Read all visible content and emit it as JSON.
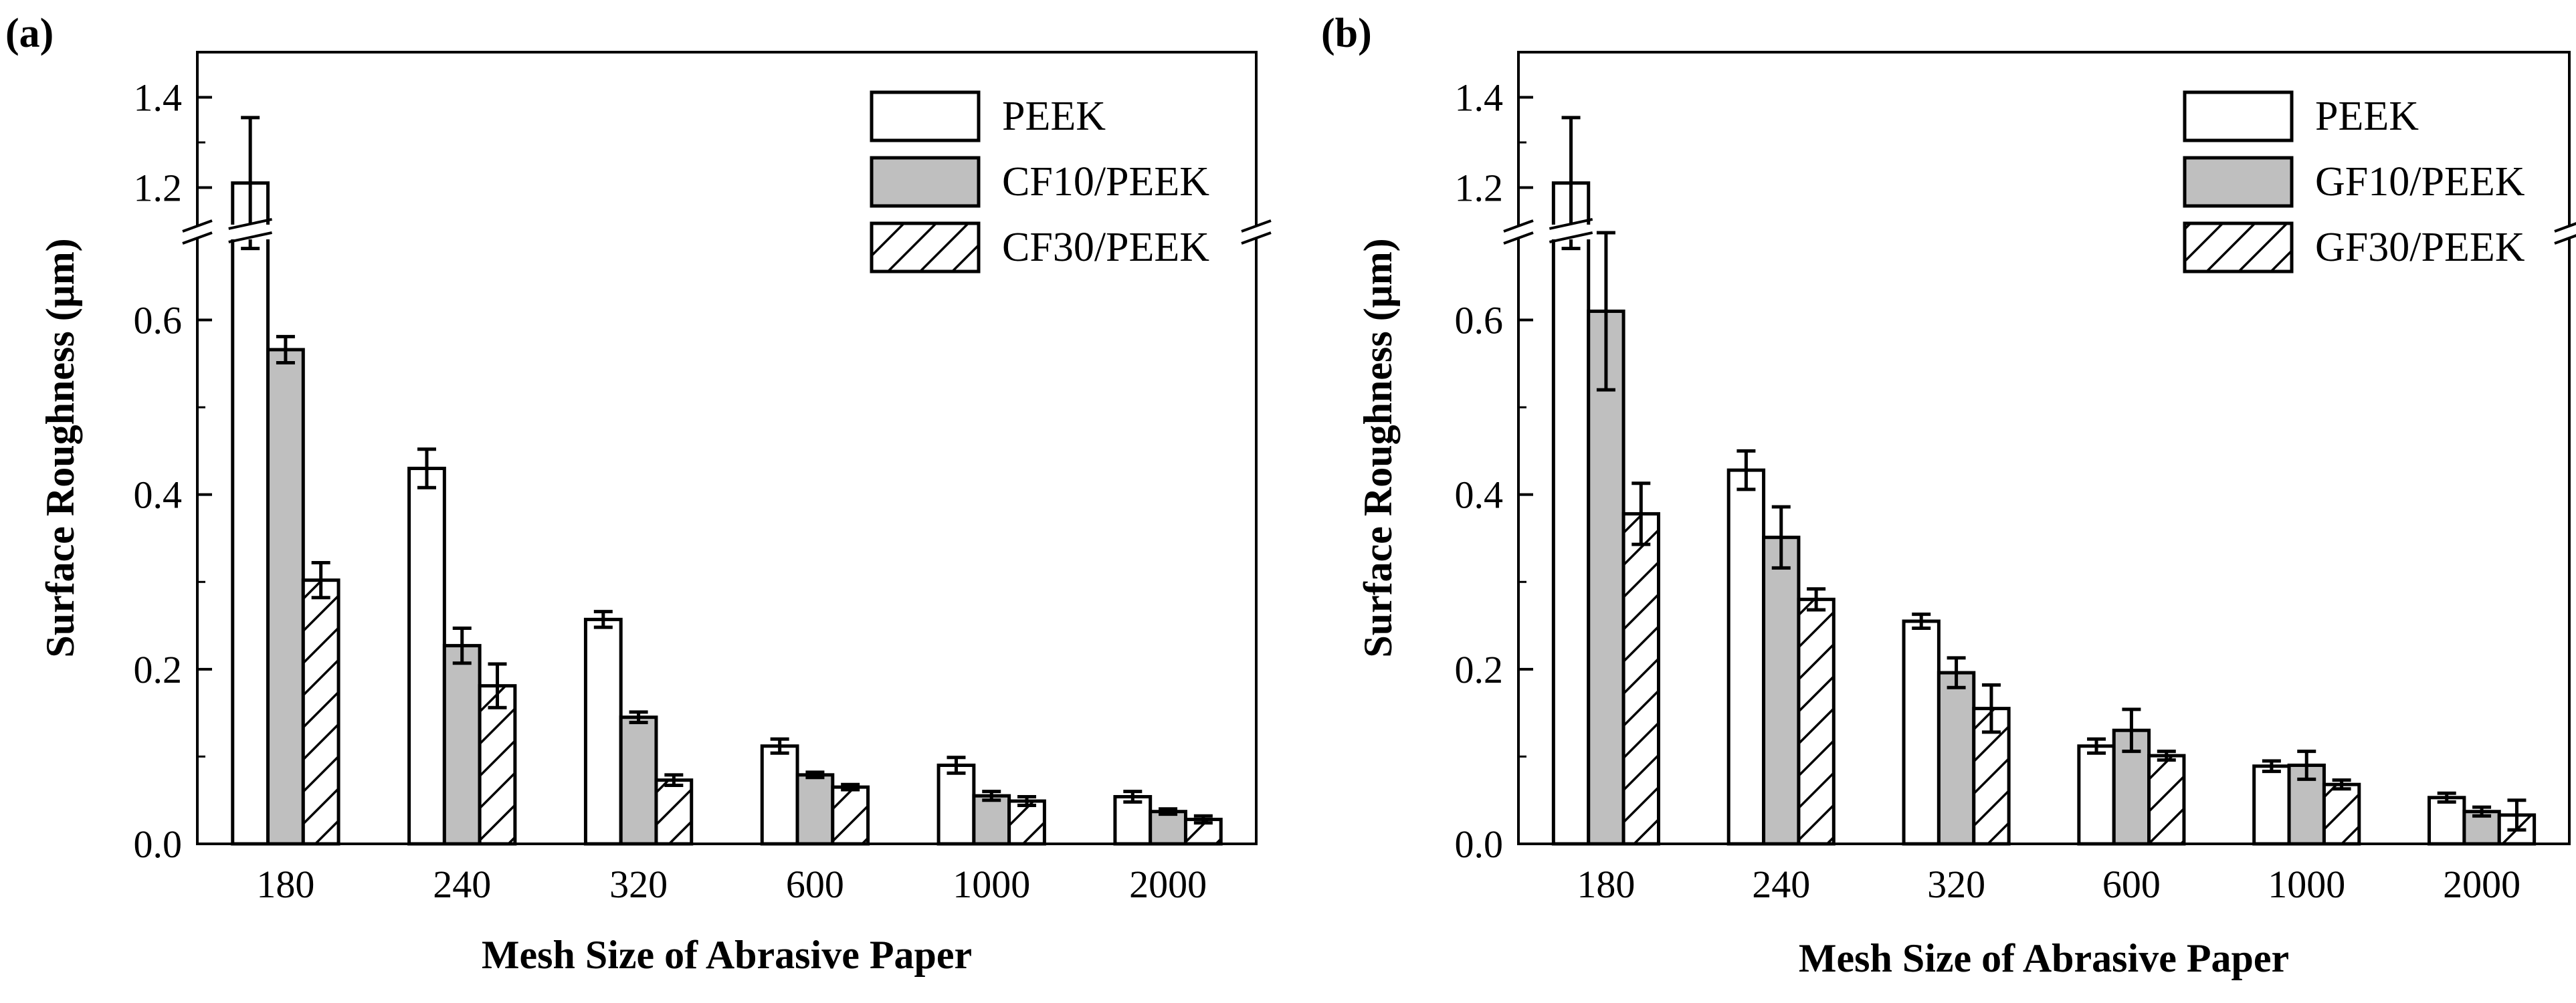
{
  "figure": {
    "panels": [
      {
        "label": "(a)"
      },
      {
        "label": "(b)"
      }
    ]
  },
  "chart_data": [
    {
      "type": "bar",
      "panel": "(a)",
      "xlabel": "Mesh Size of Abrasive Paper",
      "ylabel": "Surface Roughness (μm)",
      "categories": [
        "180",
        "240",
        "320",
        "600",
        "1000",
        "2000"
      ],
      "axis_break": {
        "lower_range": [
          0,
          0.7
        ],
        "upper_range": [
          1.1,
          1.5
        ]
      },
      "yticks_lower": [
        "0.0",
        "0.2",
        "0.4",
        "0.6"
      ],
      "yticks_upper": [
        "1.2",
        "1.4"
      ],
      "legend_position": "top-right",
      "series": [
        {
          "name": "PEEK",
          "style": "white",
          "values": [
            1.21,
            0.43,
            0.257,
            0.112,
            0.09,
            0.054
          ],
          "errors": [
            0.145,
            0.022,
            0.009,
            0.008,
            0.009,
            0.006
          ]
        },
        {
          "name": "CF10/PEEK",
          "style": "gray",
          "values": [
            0.566,
            0.227,
            0.145,
            0.079,
            0.055,
            0.037
          ],
          "errors": [
            0.015,
            0.02,
            0.006,
            0.003,
            0.005,
            0.003
          ]
        },
        {
          "name": "CF30/PEEK",
          "style": "hatched",
          "values": [
            0.302,
            0.181,
            0.073,
            0.065,
            0.049,
            0.028
          ],
          "errors": [
            0.02,
            0.025,
            0.006,
            0.003,
            0.005,
            0.004
          ]
        }
      ]
    },
    {
      "type": "bar",
      "panel": "(b)",
      "xlabel": "Mesh Size of Abrasive Paper",
      "ylabel": "Surface Roughness (μm)",
      "categories": [
        "180",
        "240",
        "320",
        "600",
        "1000",
        "2000"
      ],
      "axis_break": {
        "lower_range": [
          0,
          0.7
        ],
        "upper_range": [
          1.1,
          1.5
        ]
      },
      "yticks_lower": [
        "0.0",
        "0.2",
        "0.4",
        "0.6"
      ],
      "yticks_upper": [
        "1.2",
        "1.4"
      ],
      "legend_position": "top-right",
      "series": [
        {
          "name": "PEEK",
          "style": "white",
          "values": [
            1.21,
            0.428,
            0.255,
            0.112,
            0.089,
            0.053
          ],
          "errors": [
            0.145,
            0.022,
            0.008,
            0.008,
            0.006,
            0.005
          ]
        },
        {
          "name": "GF10/PEEK",
          "style": "gray",
          "values": [
            0.61,
            0.351,
            0.196,
            0.13,
            0.09,
            0.037
          ],
          "errors": [
            0.09,
            0.035,
            0.017,
            0.024,
            0.016,
            0.005
          ]
        },
        {
          "name": "GF30/PEEK",
          "style": "hatched",
          "values": [
            0.378,
            0.28,
            0.155,
            0.101,
            0.068,
            0.033
          ],
          "errors": [
            0.035,
            0.012,
            0.027,
            0.005,
            0.005,
            0.017
          ]
        }
      ]
    }
  ]
}
